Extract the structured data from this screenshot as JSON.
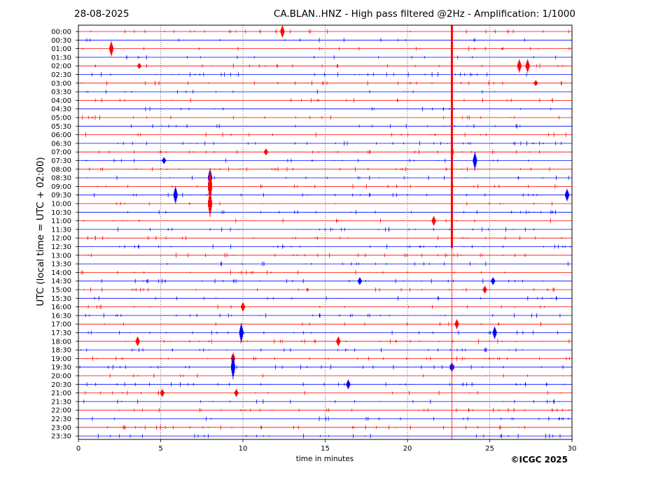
{
  "header": {
    "date": "28-08-2025",
    "title": "CA.BLAN..HNZ - High pass filtered @2Hz - Amplification: 1/1000"
  },
  "footer": {
    "credit": "©ICGC 2025"
  },
  "chart_data": {
    "type": "line",
    "title": "CA.BLAN..HNZ - High pass filtered @2Hz - Amplification: 1/1000",
    "xlabel": "time in minutes",
    "ylabel": "UTC (local time = UTC + 02:00)",
    "xlim": [
      0,
      30
    ],
    "xticks": [
      0,
      5,
      10,
      15,
      20,
      25,
      30
    ],
    "grid": "vertical dotted lines every 5 minutes",
    "trace_colors": [
      "#ff0000",
      "#0000ff"
    ],
    "rows": [
      "00:00",
      "00:30",
      "01:00",
      "01:30",
      "02:00",
      "02:30",
      "03:00",
      "03:30",
      "04:00",
      "04:30",
      "05:00",
      "05:30",
      "06:00",
      "06:30",
      "07:00",
      "07:30",
      "08:00",
      "08:30",
      "09:00",
      "09:30",
      "10:00",
      "10:30",
      "11:00",
      "11:30",
      "12:00",
      "12:30",
      "13:00",
      "13:30",
      "14:00",
      "14:30",
      "15:00",
      "15:30",
      "16:00",
      "16:30",
      "17:00",
      "17:30",
      "18:00",
      "18:30",
      "19:00",
      "19:30",
      "20:00",
      "20:30",
      "21:00",
      "21:30",
      "22:00",
      "22:30",
      "23:00",
      "23:30"
    ],
    "events": [
      {
        "row": 0,
        "minute": 12.4,
        "amp": 1.3
      },
      {
        "row": 2,
        "minute": 2.0,
        "amp": 1.6
      },
      {
        "row": 4,
        "minute": 3.7,
        "amp": 0.6
      },
      {
        "row": 4,
        "minute": 26.8,
        "amp": 1.4
      },
      {
        "row": 4,
        "minute": 27.3,
        "amp": 1.4
      },
      {
        "row": 6,
        "minute": 27.8,
        "amp": 0.6
      },
      {
        "row": 14,
        "minute": 11.4,
        "amp": 0.7
      },
      {
        "row": 15,
        "minute": 5.2,
        "amp": 0.7
      },
      {
        "row": 15,
        "minute": 24.1,
        "amp": 1.8
      },
      {
        "row": 17,
        "minute": 8.0,
        "amp": 2.0
      },
      {
        "row": 18,
        "minute": 8.0,
        "amp": 3.5
      },
      {
        "row": 19,
        "minute": 5.9,
        "amp": 1.8
      },
      {
        "row": 19,
        "minute": 29.7,
        "amp": 1.3
      },
      {
        "row": 20,
        "minute": 8.0,
        "amp": 2.8
      },
      {
        "row": 22,
        "minute": 21.6,
        "amp": 1.0
      },
      {
        "row": 29,
        "minute": 17.1,
        "amp": 0.8
      },
      {
        "row": 29,
        "minute": 25.2,
        "amp": 0.8
      },
      {
        "row": 30,
        "minute": 24.7,
        "amp": 0.8
      },
      {
        "row": 32,
        "minute": 10.0,
        "amp": 1.0
      },
      {
        "row": 34,
        "minute": 23.0,
        "amp": 1.0
      },
      {
        "row": 35,
        "minute": 9.9,
        "amp": 2.0
      },
      {
        "row": 35,
        "minute": 25.3,
        "amp": 1.3
      },
      {
        "row": 36,
        "minute": 3.6,
        "amp": 1.0
      },
      {
        "row": 36,
        "minute": 15.8,
        "amp": 1.0
      },
      {
        "row": 38,
        "minute": 9.4,
        "amp": 1.2
      },
      {
        "row": 39,
        "minute": 9.4,
        "amp": 2.5
      },
      {
        "row": 39,
        "minute": 22.7,
        "amp": 1.0
      },
      {
        "row": 41,
        "minute": 16.4,
        "amp": 1.0
      },
      {
        "row": 42,
        "minute": 5.1,
        "amp": 0.8
      },
      {
        "row": 42,
        "minute": 9.6,
        "amp": 0.8
      }
    ],
    "saturated_column": {
      "minute": 22.7,
      "from_row": 0,
      "to_row": 25
    }
  }
}
